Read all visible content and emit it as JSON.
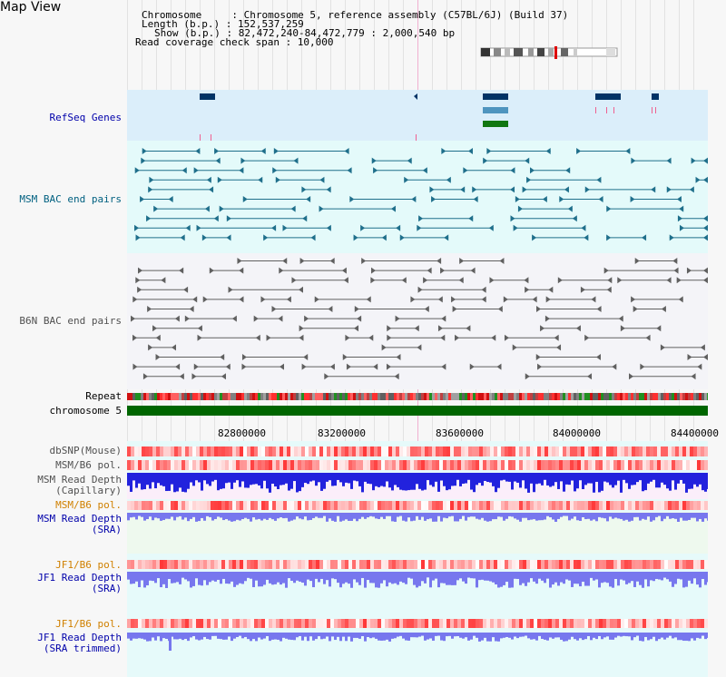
{
  "title": "Map View",
  "header": {
    "line1": "Chromosome     : Chromosome 5, reference assembly (C57BL/6J) (Build 37)",
    "line2": "Length (b.p.) : 152,537,259",
    "line3": "Show (b.p.) : 82,472,240-84,472,779 : 2,000,540 bp",
    "line4": "Read coverage check span : 10,000"
  },
  "tracks": {
    "refseq": "RefSeq Genes",
    "msm_bac": "MSM BAC end pairs",
    "b6n_bac": "B6N BAC end pairs",
    "repeat": "Repeat",
    "chromosome": "chromosome 5",
    "dbsnp": "dbSNP(Mouse)",
    "msm_b6_pol_1": "MSM/B6 pol.",
    "msm_depth_cap_1": "MSM Read Depth",
    "msm_depth_cap_2": "(Capillary)",
    "msm_b6_pol_2": "MSM/B6 pol.",
    "msm_depth_sra_1": "MSM Read Depth",
    "msm_depth_sra_2": "(SRA)",
    "jf1_pol_1": "JF1/B6 pol.",
    "jf1_depth_1": "JF1 Read Depth",
    "jf1_depth_2": "(SRA)",
    "jf1_pol_2": "JF1/B6 pol.",
    "jf1_trim_1": "JF1 Read Depth",
    "jf1_trim_2": "(SRA trimmed)"
  },
  "axis": {
    "ticks": [
      "82800000",
      "83200000",
      "83600000",
      "84000000",
      "84400000"
    ]
  },
  "colors": {
    "refseq_bg": "#dbeefa",
    "msm_bg": "#e4fafa",
    "b6n_bg": "#f4f4f8",
    "lower_bg": "#e6fafa",
    "green_bg": "#eef9ee",
    "pink_bg": "#fbeefa",
    "feature_teal": "#1f6f8b",
    "feature_grey": "#606060",
    "chrom_green": "#006600",
    "depth_blue": "#2222dd",
    "depth_lightblue": "#7777ee"
  }
}
